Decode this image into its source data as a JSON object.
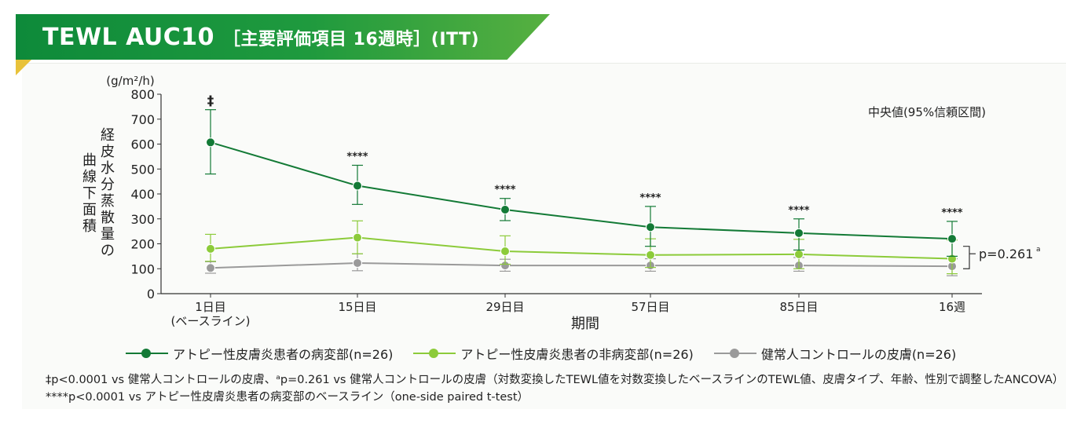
{
  "header": {
    "title": "TEWL AUC10",
    "subtitle": "［主要評価項目 16週時］(ITT)"
  },
  "chart_data": {
    "type": "line",
    "ylabel_unit": "(g/m²/h)",
    "ylabel": "経皮水分蒸散量の曲線下面積",
    "xlabel": "期間",
    "ylim": [
      0,
      800
    ],
    "yticks": [
      "0",
      "100",
      "200",
      "300",
      "400",
      "500",
      "600",
      "700",
      "800"
    ],
    "categories": [
      "1日目\n(ベースライン)",
      "15日目",
      "29日目",
      "57日目",
      "85日目",
      "16週"
    ],
    "note": "中央値(95%信頼区間)",
    "grid": false,
    "legend_position": "bottom",
    "series": [
      {
        "name": "アトピー性皮膚炎患者の病変部(n=26)",
        "color": "#137a36",
        "values": [
          607,
          433,
          337,
          267,
          243,
          220
        ],
        "ci_low": [
          480,
          358,
          293,
          190,
          175,
          150
        ],
        "ci_high": [
          738,
          515,
          382,
          350,
          300,
          290
        ],
        "annotations": [
          "‡",
          "****",
          "****",
          "****",
          "****",
          "****"
        ]
      },
      {
        "name": "アトピー性皮膚炎患者の非病変部(n=26)",
        "color": "#8ccb3a",
        "values": [
          180,
          225,
          170,
          155,
          158,
          140
        ],
        "ci_low": [
          130,
          160,
          118,
          105,
          100,
          80
        ],
        "ci_high": [
          238,
          292,
          232,
          220,
          218,
          215
        ]
      },
      {
        "name": "健常人コントロールの皮膚(n=26)",
        "color": "#9a9a9a",
        "values": [
          103,
          123,
          113,
          113,
          113,
          110
        ],
        "ci_low": [
          82,
          92,
          90,
          90,
          90,
          72
        ],
        "ci_high": [
          128,
          160,
          138,
          140,
          145,
          140
        ]
      }
    ],
    "bracket_label": "p=0.261",
    "bracket_label_mark": "a"
  },
  "footnotes": [
    "‡p<0.0001 vs 健常人コントロールの皮膚、ᵃp=0.261 vs 健常人コントロールの皮膚（対数変換したTEWL値を対数変換したベースラインのTEWL値、皮膚タイプ、年齢、性別で調整したANCOVA）",
    "****p<0.0001 vs アトピー性皮膚炎患者の病変部のベースライン（one-side paired t-test）"
  ]
}
